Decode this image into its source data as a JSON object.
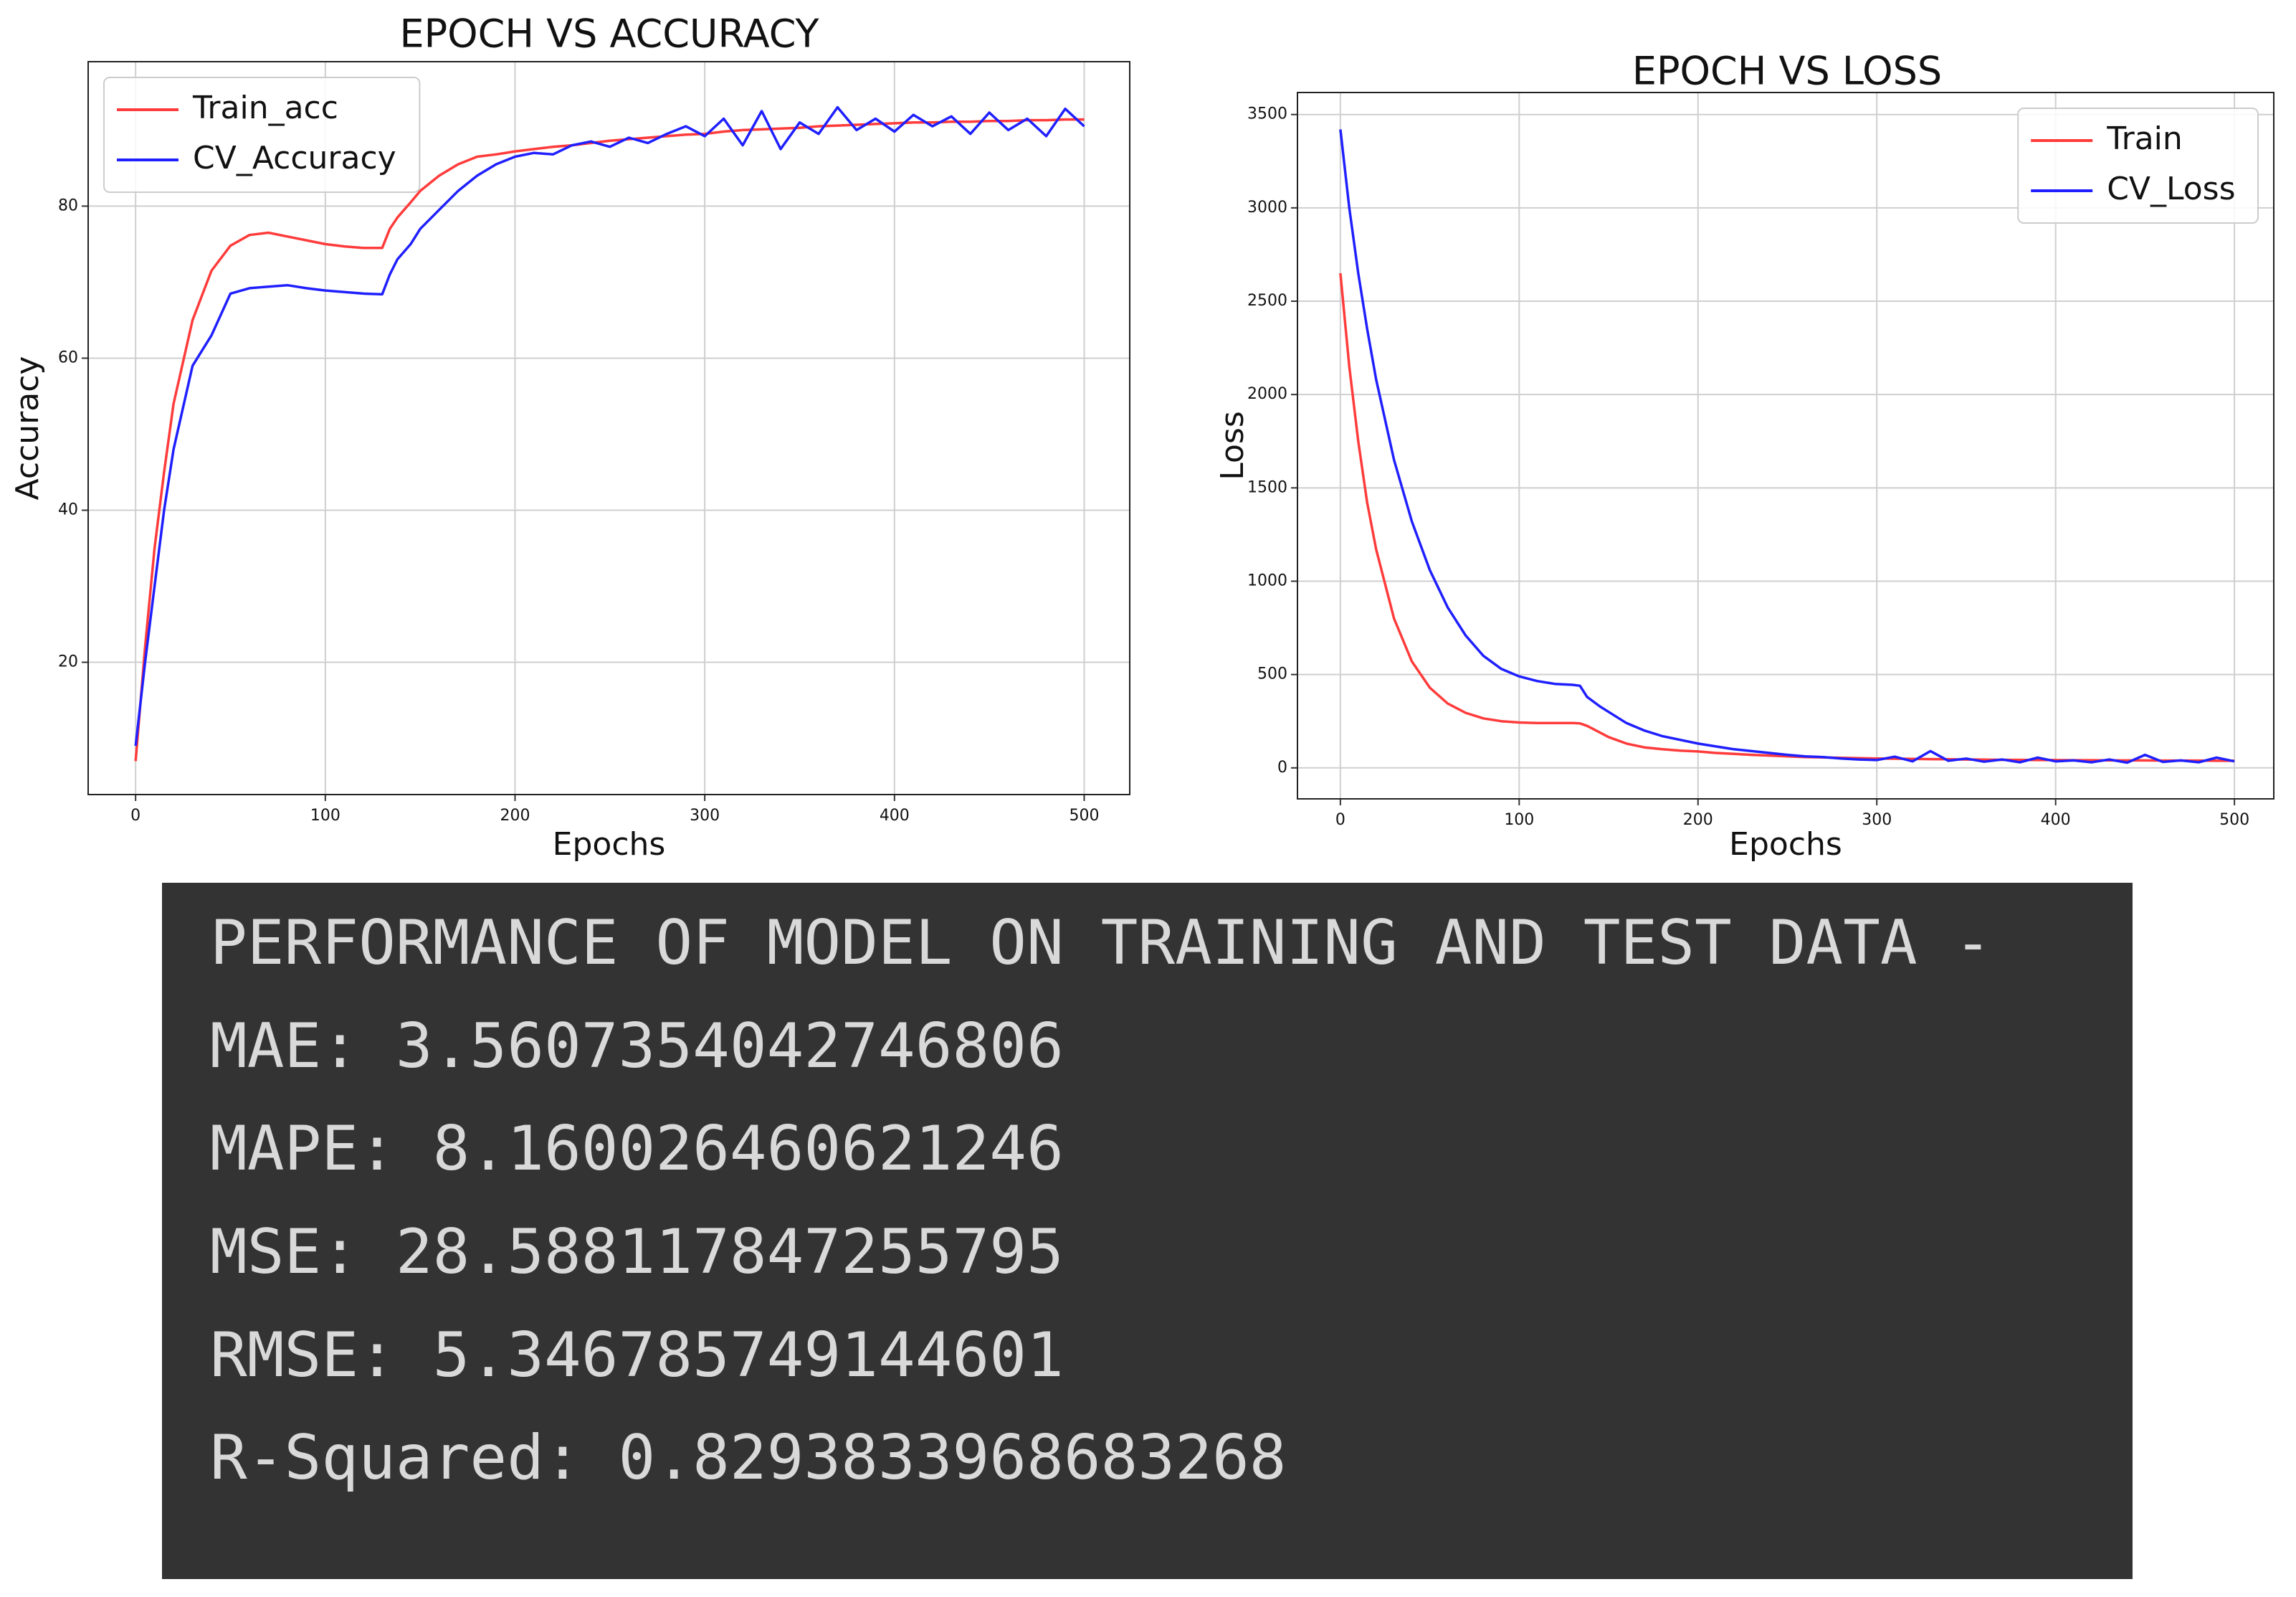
{
  "chart_data": [
    {
      "type": "line",
      "title": "EPOCH VS ACCURACY",
      "x_label": "Epochs",
      "y_label": "Accuracy",
      "x": [
        0,
        5,
        10,
        15,
        20,
        30,
        40,
        50,
        60,
        70,
        80,
        90,
        100,
        110,
        120,
        130,
        134,
        138,
        145,
        150,
        160,
        170,
        180,
        190,
        200,
        210,
        220,
        230,
        240,
        250,
        260,
        270,
        280,
        290,
        300,
        310,
        320,
        330,
        340,
        350,
        360,
        370,
        380,
        390,
        400,
        410,
        420,
        430,
        440,
        450,
        460,
        470,
        480,
        490,
        500
      ],
      "series": [
        {
          "name": "Train_acc",
          "color": "#ff3b3b",
          "values": [
            7,
            22,
            35,
            45,
            54,
            65,
            71.5,
            74.8,
            76.2,
            76.5,
            76,
            75.5,
            75,
            74.7,
            74.5,
            74.5,
            77,
            78.5,
            80.5,
            82,
            84,
            85.5,
            86.5,
            86.8,
            87.2,
            87.5,
            87.8,
            88,
            88.3,
            88.6,
            88.8,
            89,
            89.2,
            89.4,
            89.5,
            89.8,
            90,
            90.1,
            90.2,
            90.3,
            90.5,
            90.6,
            90.7,
            90.8,
            90.9,
            91,
            91,
            91.1,
            91.1,
            91.2,
            91.2,
            91.3,
            91.3,
            91.4,
            91.4
          ]
        },
        {
          "name": "CV_Accuracy",
          "color": "#1f1fff",
          "values": [
            9,
            20,
            30,
            40,
            48,
            59,
            63,
            68.5,
            69.2,
            69.4,
            69.6,
            69.2,
            68.9,
            68.7,
            68.5,
            68.4,
            71,
            73,
            75,
            77,
            79.5,
            82,
            84,
            85.5,
            86.5,
            87,
            86.8,
            88,
            88.5,
            87.8,
            89,
            88.3,
            89.5,
            90.5,
            89.2,
            91.5,
            88,
            92.5,
            87.5,
            91,
            89.5,
            93,
            90,
            91.5,
            89.8,
            92,
            90.5,
            91.8,
            89.5,
            92.3,
            90,
            91.5,
            89.2,
            92.8,
            90.5
          ]
        }
      ],
      "xlim": [
        -25,
        524
      ],
      "ylim": [
        2.6,
        99
      ],
      "xticks": [
        0,
        100,
        200,
        300,
        400,
        500
      ],
      "yticks": [
        20,
        40,
        60,
        80
      ],
      "grid": true,
      "legend": "upper left"
    },
    {
      "type": "line",
      "title": "EPOCH VS LOSS",
      "x_label": "Epochs",
      "y_label": "Loss",
      "x": [
        0,
        5,
        10,
        15,
        20,
        30,
        40,
        50,
        60,
        70,
        80,
        90,
        100,
        110,
        120,
        130,
        134,
        138,
        145,
        150,
        160,
        170,
        180,
        190,
        200,
        210,
        220,
        230,
        240,
        250,
        260,
        270,
        280,
        290,
        300,
        310,
        320,
        330,
        340,
        350,
        360,
        370,
        380,
        390,
        400,
        410,
        420,
        430,
        440,
        450,
        460,
        470,
        480,
        490,
        500
      ],
      "series": [
        {
          "name": "Train",
          "color": "#ff3b3b",
          "values": [
            2650,
            2150,
            1750,
            1420,
            1170,
            800,
            570,
            430,
            345,
            295,
            265,
            250,
            243,
            240,
            240,
            240,
            238,
            225,
            190,
            165,
            130,
            110,
            100,
            92,
            88,
            80,
            75,
            70,
            66,
            62,
            58,
            56,
            54,
            52,
            50,
            49,
            48,
            47,
            46,
            45,
            44,
            43,
            43,
            42,
            42,
            41,
            41,
            40,
            40,
            40,
            39,
            39,
            39,
            38,
            38
          ]
        },
        {
          "name": "CV_Loss",
          "color": "#1f1fff",
          "values": [
            3420,
            3000,
            2650,
            2350,
            2080,
            1650,
            1320,
            1060,
            860,
            710,
            600,
            530,
            490,
            465,
            450,
            445,
            440,
            380,
            330,
            300,
            240,
            200,
            170,
            150,
            130,
            115,
            100,
            90,
            80,
            70,
            62,
            58,
            50,
            45,
            42,
            60,
            35,
            90,
            38,
            50,
            33,
            45,
            30,
            55,
            35,
            40,
            30,
            45,
            28,
            70,
            32,
            40,
            30,
            55,
            35
          ]
        }
      ],
      "xlim": [
        -24,
        522
      ],
      "ylim": [
        -166,
        3618
      ],
      "xticks": [
        0,
        100,
        200,
        300,
        400,
        500
      ],
      "yticks": [
        0,
        500,
        1000,
        1500,
        2000,
        2500,
        3000,
        3500
      ],
      "grid": true,
      "legend": "upper right"
    }
  ],
  "terminal": {
    "heading": "PERFORMANCE OF MODEL ON TRAINING AND TEST DATA -",
    "lines": [
      "MAE: 3.5607354042746806",
      "MAPE: 8.160026460621246",
      "MSE: 28.588117847255795",
      "RMSE: 5.346785749144601",
      "R-Squared: 0.8293833968683268"
    ]
  }
}
